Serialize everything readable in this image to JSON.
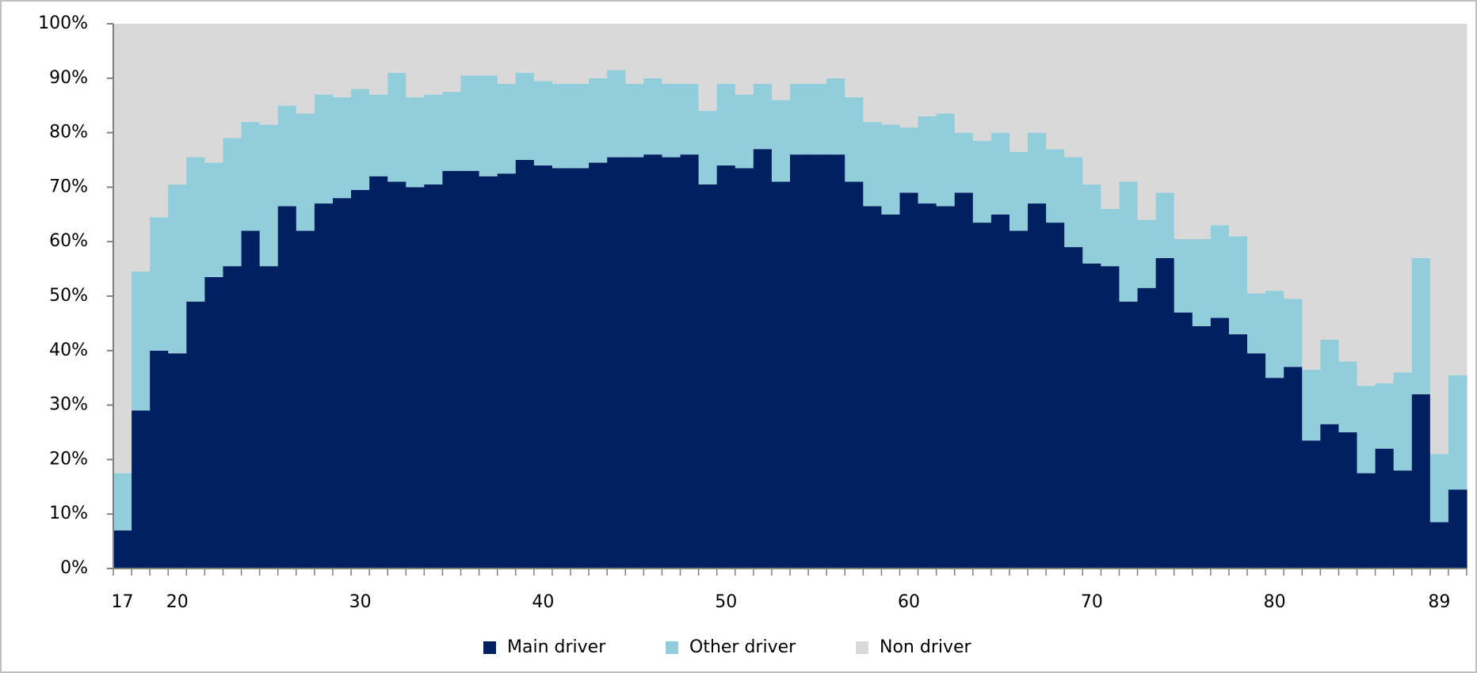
{
  "chart_data": {
    "type": "stacked_bar",
    "categories": [
      "17",
      null,
      null,
      "20",
      null,
      null,
      null,
      null,
      null,
      null,
      null,
      null,
      null,
      "30",
      null,
      null,
      null,
      null,
      null,
      null,
      null,
      null,
      null,
      "40",
      null,
      null,
      null,
      null,
      null,
      null,
      null,
      null,
      null,
      "50",
      null,
      null,
      null,
      null,
      null,
      null,
      null,
      null,
      null,
      "60",
      null,
      null,
      null,
      null,
      null,
      null,
      null,
      null,
      null,
      "70",
      null,
      null,
      null,
      null,
      null,
      null,
      null,
      null,
      null,
      "80",
      null,
      null,
      null,
      null,
      null,
      null,
      null,
      null,
      "89",
      null
    ],
    "series": [
      {
        "name": "Main driver",
        "color": "#002060",
        "values": [
          7,
          29,
          40,
          39.5,
          49,
          53.5,
          55.5,
          62,
          55.5,
          66.5,
          62,
          67,
          68,
          69.5,
          72,
          71,
          70,
          70.5,
          73,
          73,
          72,
          72.5,
          75,
          74,
          73.5,
          73.5,
          74.5,
          75.5,
          75.5,
          76,
          75.5,
          76,
          70.5,
          74,
          73.5,
          77,
          71,
          76,
          76,
          76,
          71,
          66.5,
          65,
          69,
          67,
          66.5,
          69,
          63.5,
          65,
          62,
          67,
          63.5,
          59,
          56,
          55.5,
          49,
          51.5,
          57,
          47,
          44.5,
          46,
          43,
          39.5,
          35,
          37,
          23.5,
          26.5,
          25,
          17.5,
          22,
          18,
          32,
          8.5,
          14.5
        ]
      },
      {
        "name": "Other driver",
        "color": "#92cddc",
        "values": [
          10.5,
          25.5,
          24.5,
          31,
          26.5,
          21,
          23.5,
          20,
          26,
          18.5,
          21.5,
          20,
          18.5,
          18.5,
          15,
          20,
          16.5,
          16.5,
          14.5,
          17.5,
          18.5,
          16.5,
          16,
          15.5,
          15.5,
          15.5,
          15.5,
          16,
          13.5,
          14,
          13.5,
          13,
          13.5,
          15,
          13.5,
          12,
          15,
          13,
          13,
          14,
          15.5,
          15.5,
          16.5,
          12,
          16,
          17,
          11,
          15,
          15,
          14.5,
          13,
          13.5,
          16.5,
          14.5,
          10.5,
          22,
          12.5,
          12,
          13.5,
          16,
          17,
          18,
          11,
          16,
          12.5,
          13,
          15.5,
          13,
          16,
          12,
          18,
          25,
          12.5,
          21
        ]
      },
      {
        "name": "Non driver",
        "color": "#d9d9d9",
        "values": [
          82.5,
          45.5,
          35.5,
          29.5,
          24.5,
          25.5,
          21,
          18,
          18.5,
          15,
          16.5,
          13,
          13.5,
          12,
          13,
          9,
          13.5,
          13,
          12.5,
          9.5,
          9.5,
          11,
          9,
          10.5,
          11,
          11,
          10,
          8.5,
          11,
          10,
          11,
          11,
          16,
          11,
          13,
          11,
          14,
          11,
          11,
          10,
          13.5,
          18,
          18.5,
          19,
          17,
          16.5,
          20,
          21.5,
          20,
          23.5,
          20,
          23,
          24.5,
          29.5,
          34,
          29,
          36,
          31,
          39.5,
          39.5,
          37,
          39,
          49.5,
          49,
          50.5,
          63.5,
          58,
          62,
          66.5,
          66,
          64,
          43,
          79,
          64.5
        ]
      }
    ],
    "ylim": [
      0,
      100
    ],
    "yticks": [
      {
        "value": 0,
        "label": "0%"
      },
      {
        "value": 10,
        "label": "10%"
      },
      {
        "value": 20,
        "label": "20%"
      },
      {
        "value": 30,
        "label": "30%"
      },
      {
        "value": 40,
        "label": "40%"
      },
      {
        "value": 50,
        "label": "50%"
      },
      {
        "value": 60,
        "label": "60%"
      },
      {
        "value": 70,
        "label": "70%"
      },
      {
        "value": 80,
        "label": "80%"
      },
      {
        "value": 90,
        "label": "90%"
      },
      {
        "value": 100,
        "label": "100%"
      }
    ],
    "legend": "bottom"
  }
}
